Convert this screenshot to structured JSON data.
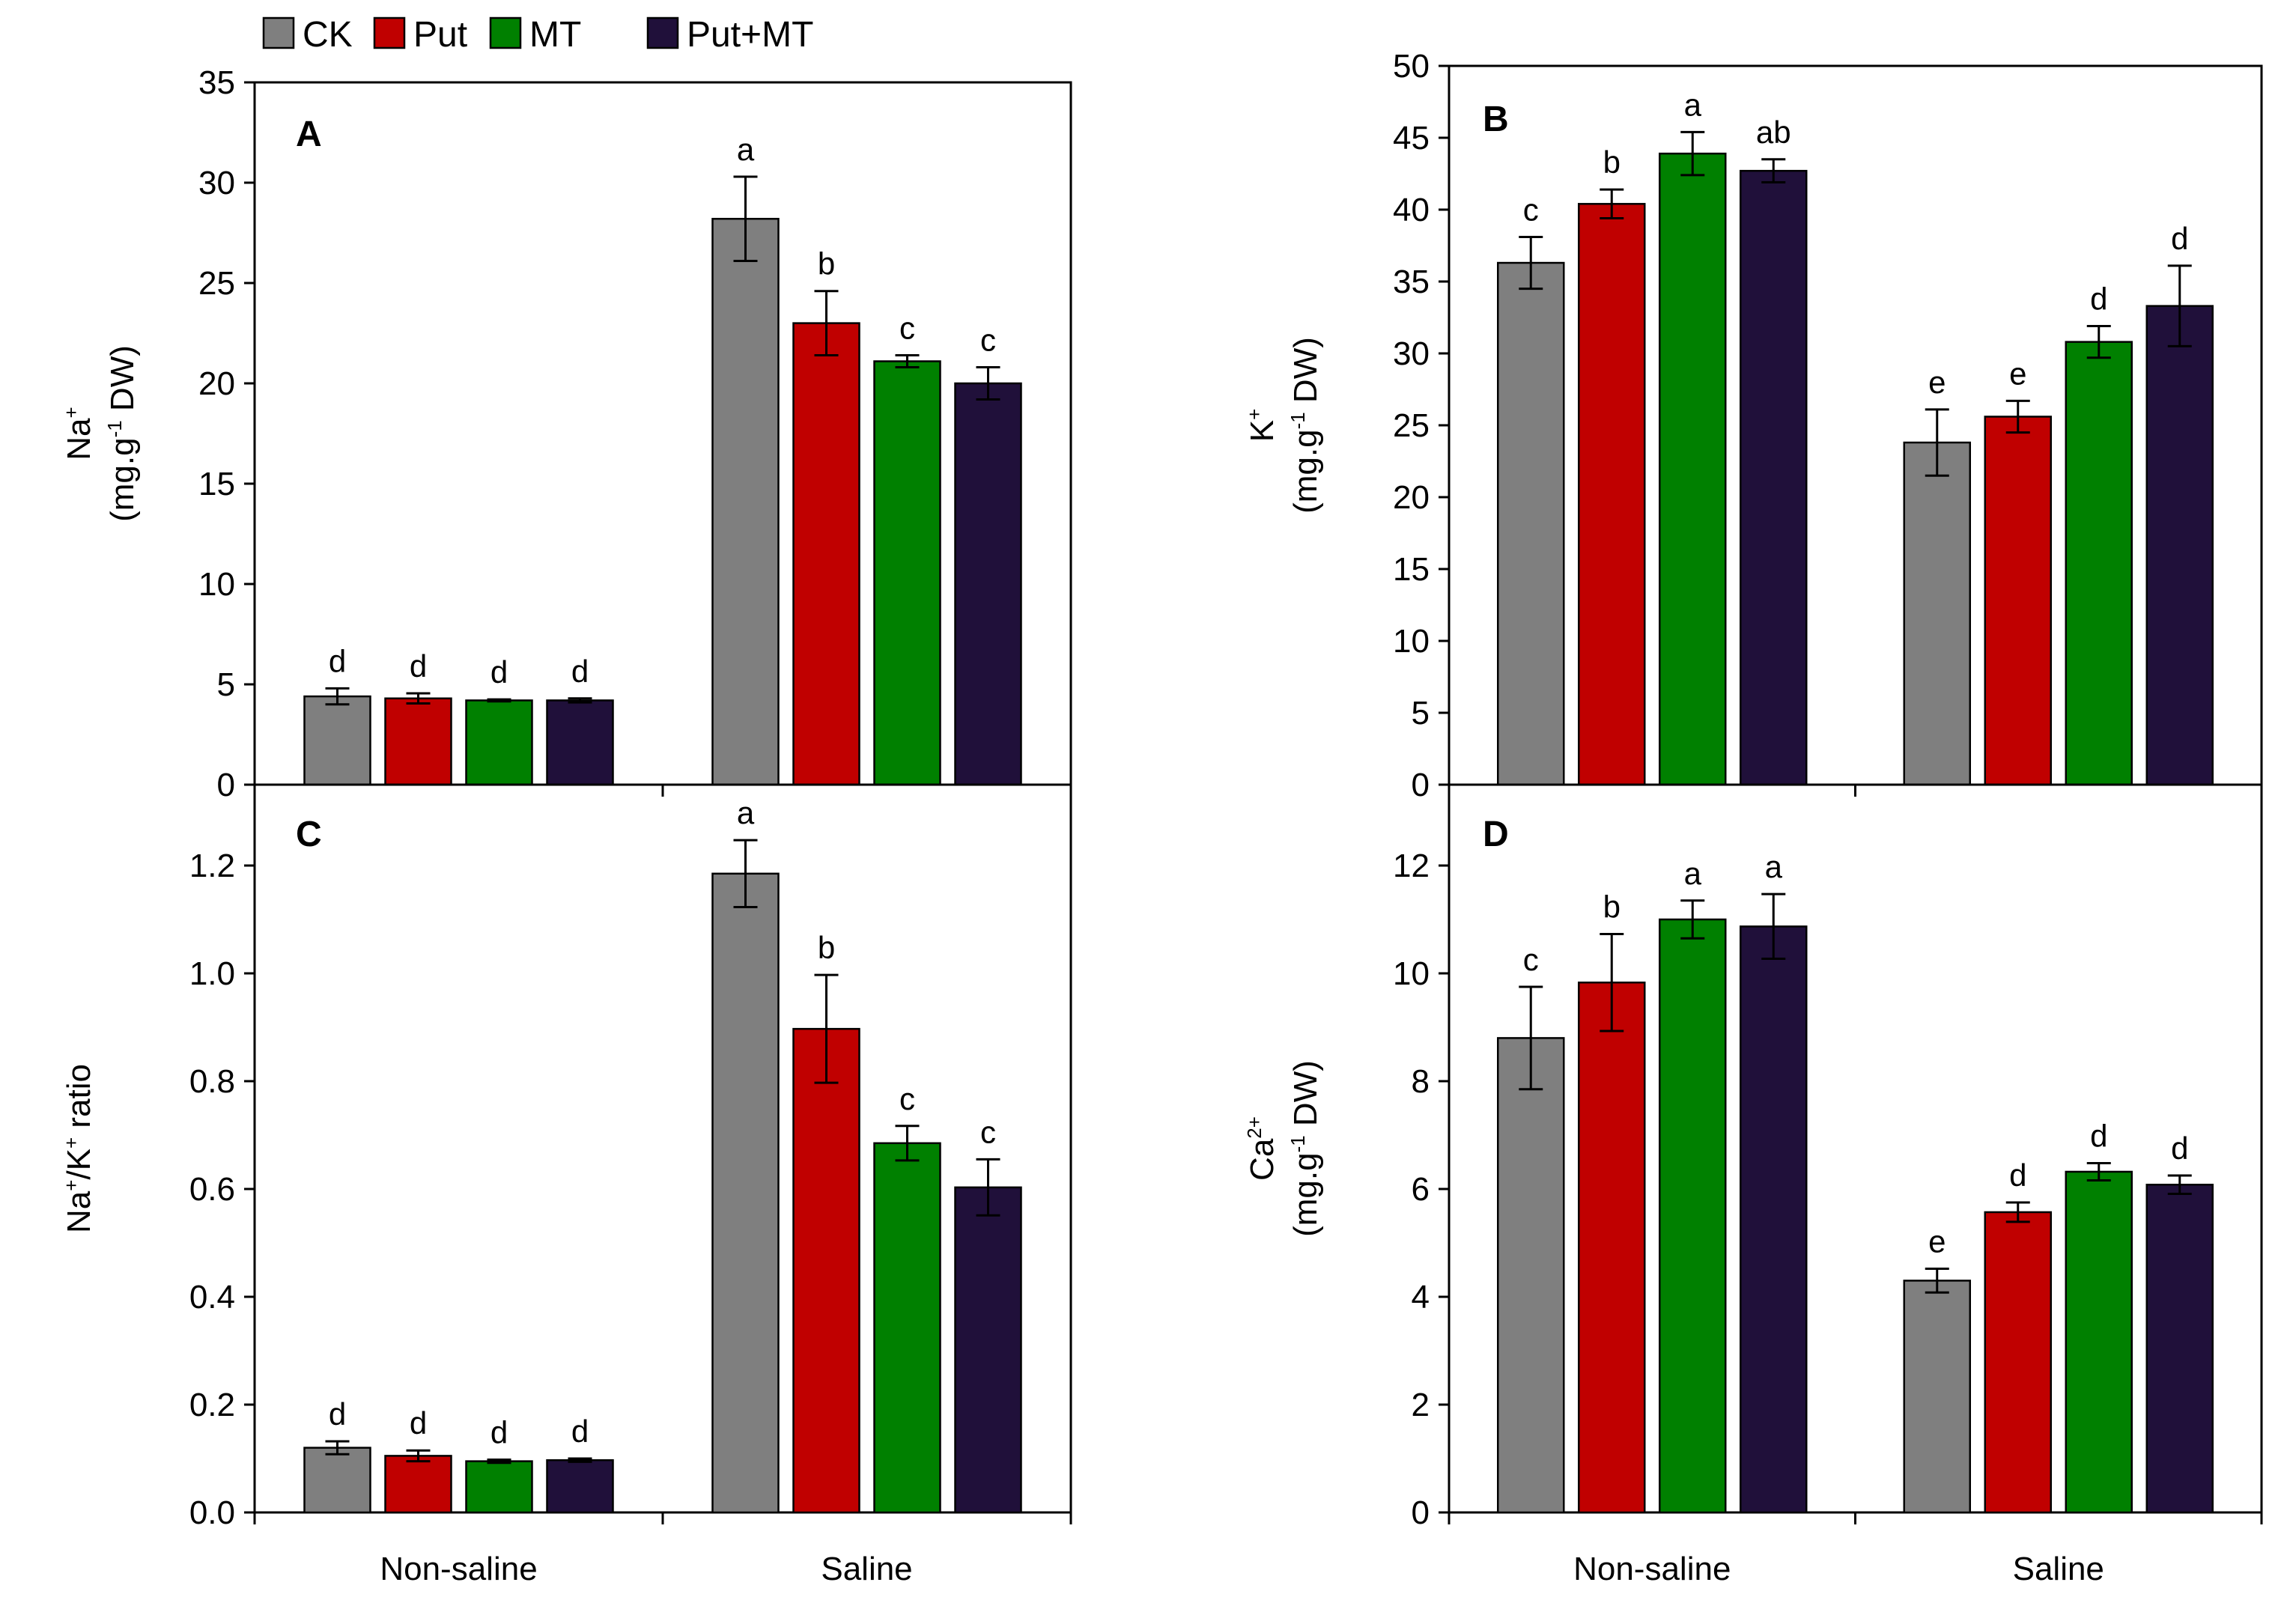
{
  "legend": {
    "items": [
      {
        "label": "CK",
        "color": "#7f7f7f"
      },
      {
        "label": "Put",
        "color": "#c00000"
      },
      {
        "label": "MT",
        "color": "#008000"
      },
      {
        "label": "Put+MT",
        "color": "#20103a"
      }
    ]
  },
  "chart_data": [
    {
      "panel": "A",
      "type": "bar",
      "categories": [
        "Non-saline",
        "Saline"
      ],
      "show_category_labels": false,
      "ylim": [
        0,
        35
      ],
      "yticks": [
        0,
        5,
        10,
        15,
        20,
        25,
        30,
        35
      ],
      "ytick_labels": [
        "0",
        "5",
        "10",
        "15",
        "20",
        "25",
        "30",
        "35"
      ],
      "ylabel": {
        "line1_main": "Na",
        "line1_sup": "+",
        "line2_pre": "(mg.g",
        "line2_sup": "-1",
        "line2_post": " DW)"
      },
      "series": [
        {
          "name": "CK",
          "values": [
            4.4,
            28.2
          ],
          "errors": [
            0.4,
            2.1
          ],
          "letters": [
            "d",
            "a"
          ]
        },
        {
          "name": "Put",
          "values": [
            4.3,
            23.0
          ],
          "errors": [
            0.25,
            1.6
          ],
          "letters": [
            "d",
            "b"
          ]
        },
        {
          "name": "MT",
          "values": [
            4.2,
            21.1
          ],
          "errors": [
            0.05,
            0.3
          ],
          "letters": [
            "d",
            "c"
          ]
        },
        {
          "name": "Put+MT",
          "values": [
            4.2,
            20.0
          ],
          "errors": [
            0.1,
            0.8
          ],
          "letters": [
            "d",
            "c"
          ]
        }
      ]
    },
    {
      "panel": "B",
      "type": "bar",
      "categories": [
        "Non-saline",
        "Saline"
      ],
      "show_category_labels": false,
      "ylim": [
        0,
        50
      ],
      "yticks": [
        0,
        5,
        10,
        15,
        20,
        25,
        30,
        35,
        40,
        45,
        50
      ],
      "ytick_labels": [
        "0",
        "5",
        "10",
        "15",
        "20",
        "25",
        "30",
        "35",
        "40",
        "45",
        "50"
      ],
      "ylabel": {
        "line1_main": "K",
        "line1_sup": "+",
        "line2_pre": "(mg.g",
        "line2_sup": "-1",
        "line2_post": " DW)"
      },
      "series": [
        {
          "name": "CK",
          "values": [
            36.3,
            23.8
          ],
          "errors": [
            1.8,
            2.3
          ],
          "letters": [
            "c",
            "e"
          ]
        },
        {
          "name": "Put",
          "values": [
            40.4,
            25.6
          ],
          "errors": [
            1.0,
            1.1
          ],
          "letters": [
            "b",
            "e"
          ]
        },
        {
          "name": "MT",
          "values": [
            43.9,
            30.8
          ],
          "errors": [
            1.5,
            1.1
          ],
          "letters": [
            "a",
            "d"
          ]
        },
        {
          "name": "Put+MT",
          "values": [
            42.7,
            33.3
          ],
          "errors": [
            0.8,
            2.8
          ],
          "letters": [
            "ab",
            "d"
          ]
        }
      ]
    },
    {
      "panel": "C",
      "type": "bar",
      "categories": [
        "Non-saline",
        "Saline"
      ],
      "show_category_labels": true,
      "ylim": [
        0,
        1.35
      ],
      "yticks": [
        0,
        0.2,
        0.4,
        0.6,
        0.8,
        1.0,
        1.2
      ],
      "ytick_labels": [
        "0.0",
        "0.2",
        "0.4",
        "0.6",
        "0.8",
        "1.0",
        "1.2"
      ],
      "ylabel": {
        "line1_main": "Na",
        "line1_sup": "+",
        "line1_mid": "/K",
        "line1_sup2": "+",
        "line1_post": " ratio"
      },
      "series": [
        {
          "name": "CK",
          "values": [
            0.12,
            1.185
          ],
          "errors": [
            0.012,
            0.062
          ],
          "letters": [
            "d",
            "a"
          ]
        },
        {
          "name": "Put",
          "values": [
            0.105,
            0.897
          ],
          "errors": [
            0.01,
            0.1
          ],
          "letters": [
            "d",
            "b"
          ]
        },
        {
          "name": "MT",
          "values": [
            0.095,
            0.685
          ],
          "errors": [
            0.003,
            0.032
          ],
          "letters": [
            "d",
            "c"
          ]
        },
        {
          "name": "Put+MT",
          "values": [
            0.097,
            0.603
          ],
          "errors": [
            0.003,
            0.052
          ],
          "letters": [
            "d",
            "c"
          ]
        }
      ]
    },
    {
      "panel": "D",
      "type": "bar",
      "categories": [
        "Non-saline",
        "Saline"
      ],
      "show_category_labels": true,
      "ylim": [
        0,
        13.5
      ],
      "yticks": [
        0,
        2,
        4,
        6,
        8,
        10,
        12
      ],
      "ytick_labels": [
        "0",
        "2",
        "4",
        "6",
        "8",
        "10",
        "12"
      ],
      "ylabel": {
        "line1_main": "Ca",
        "line1_sup": "2+",
        "line2_pre": "(mg.g",
        "line2_sup": "-1",
        "line2_post": " DW)"
      },
      "series": [
        {
          "name": "CK",
          "values": [
            8.8,
            4.3
          ],
          "errors": [
            0.95,
            0.22
          ],
          "letters": [
            "c",
            "e"
          ]
        },
        {
          "name": "Put",
          "values": [
            9.83,
            5.57
          ],
          "errors": [
            0.9,
            0.18
          ],
          "letters": [
            "b",
            "d"
          ]
        },
        {
          "name": "MT",
          "values": [
            11.0,
            6.32
          ],
          "errors": [
            0.35,
            0.16
          ],
          "letters": [
            "a",
            "d"
          ]
        },
        {
          "name": "Put+MT",
          "values": [
            10.87,
            6.08
          ],
          "errors": [
            0.6,
            0.17
          ],
          "letters": [
            "a",
            "d"
          ]
        }
      ]
    }
  ]
}
